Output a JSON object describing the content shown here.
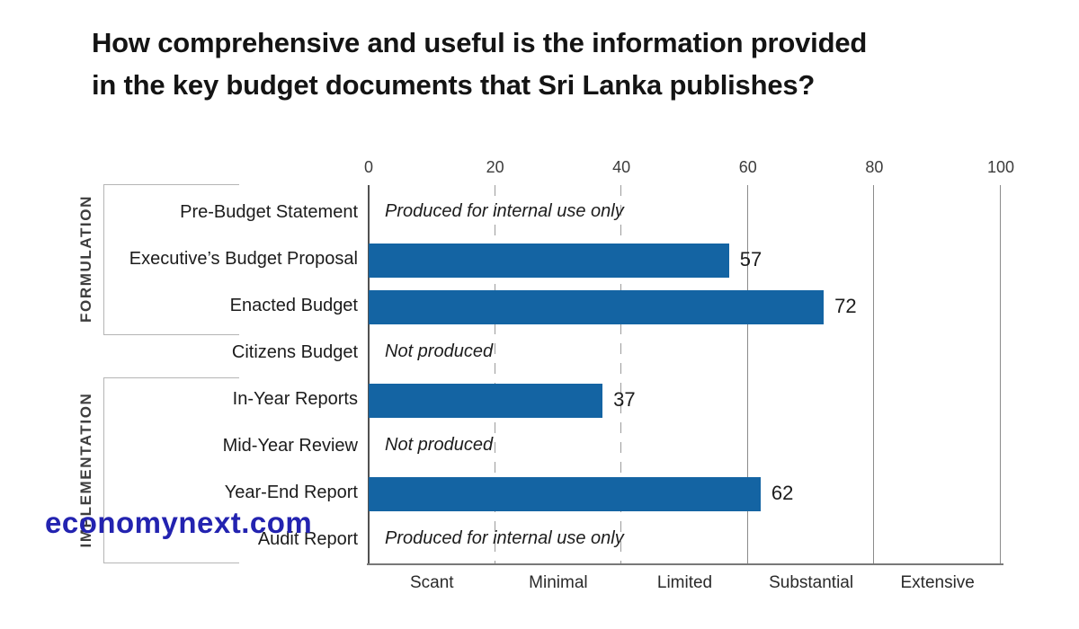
{
  "display_title": "How comprehensive and useful is the information provided\nin the key budget documents that Sri Lanka publishes?",
  "watermark": "economynext.com",
  "colors": {
    "bar": "#1464a3",
    "watermark": "#2323b0",
    "axis_line": "#515151",
    "grid_solid": "#8b8b8b",
    "grid_dashed": "#9b9b9b",
    "bracket": "#b5b5b5"
  },
  "chart_data": {
    "type": "bar",
    "orientation": "horizontal",
    "title": "How comprehensive and useful is the information provided in the key budget documents that Sri Lanka publishes?",
    "categories": [
      "Pre-Budget Statement",
      "Executive’s Budget Proposal",
      "Enacted Budget",
      "Citizens Budget",
      "In-Year Reports",
      "Mid-Year Review",
      "Year-End Report",
      "Audit Report"
    ],
    "values": [
      null,
      57,
      72,
      null,
      37,
      null,
      62,
      null
    ],
    "row_notes": [
      "Produced for internal use only",
      null,
      null,
      "Not produced",
      null,
      "Not produced",
      null,
      "Produced for internal use only"
    ],
    "xlim": [
      0,
      100
    ],
    "xticks": [
      0,
      20,
      40,
      60,
      80,
      100
    ],
    "scale_labels": [
      "Scant",
      "Minimal",
      "Limited",
      "Substantial",
      "Extensive"
    ],
    "groups": [
      {
        "label": "FORMULATION",
        "start_row": 0,
        "end_row": 2
      },
      {
        "label": "IMPLEMENTATION",
        "start_row": 4,
        "end_row": 7
      }
    ],
    "bar_color": "#1464a3",
    "grid": true,
    "legend": false,
    "xlabel": "",
    "ylabel": ""
  }
}
